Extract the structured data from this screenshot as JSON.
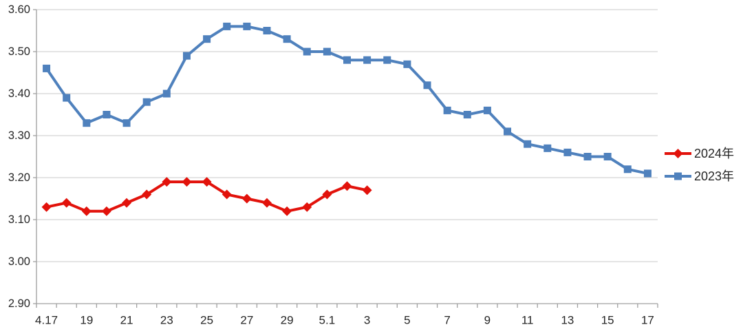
{
  "chart_data": {
    "type": "line",
    "title": "",
    "n_points": 31,
    "x_tick_labels": [
      "4.17",
      "19",
      "21",
      "23",
      "25",
      "27",
      "29",
      "5.1",
      "3",
      "5",
      "7",
      "9",
      "11",
      "13",
      "15",
      "17"
    ],
    "x_tick_point_indices": [
      0,
      2,
      4,
      6,
      8,
      10,
      12,
      14,
      16,
      18,
      20,
      22,
      24,
      26,
      28,
      30
    ],
    "y_tick_labels": [
      "3.60",
      "3.50",
      "3.40",
      "3.30",
      "3.20",
      "3.10",
      "3.00",
      "2.90"
    ],
    "ylim": [
      2.9,
      3.6
    ],
    "y_tick_step": 0.1,
    "grid": "horizontal",
    "legend_position": "right",
    "series": [
      {
        "name": "2024年",
        "marker": "diamond",
        "color": "#e2120b",
        "values": [
          3.13,
          3.14,
          3.12,
          3.12,
          3.14,
          3.16,
          3.19,
          3.19,
          3.19,
          3.16,
          3.15,
          3.14,
          3.12,
          3.13,
          3.16,
          3.18,
          3.17
        ]
      },
      {
        "name": "2023年",
        "marker": "square",
        "color": "#4f81bd",
        "values": [
          3.46,
          3.39,
          3.33,
          3.35,
          3.33,
          3.38,
          3.4,
          3.49,
          3.53,
          3.56,
          3.56,
          3.55,
          3.53,
          3.5,
          3.5,
          3.48,
          3.48,
          3.48,
          3.47,
          3.42,
          3.36,
          3.35,
          3.36,
          3.31,
          3.28,
          3.27,
          3.26,
          3.25,
          3.25,
          3.22,
          3.21
        ]
      }
    ]
  },
  "colors": {
    "grid": "#c8c8c8",
    "axis": "#9f9f9f",
    "text": "#262626",
    "background": "#ffffff"
  }
}
